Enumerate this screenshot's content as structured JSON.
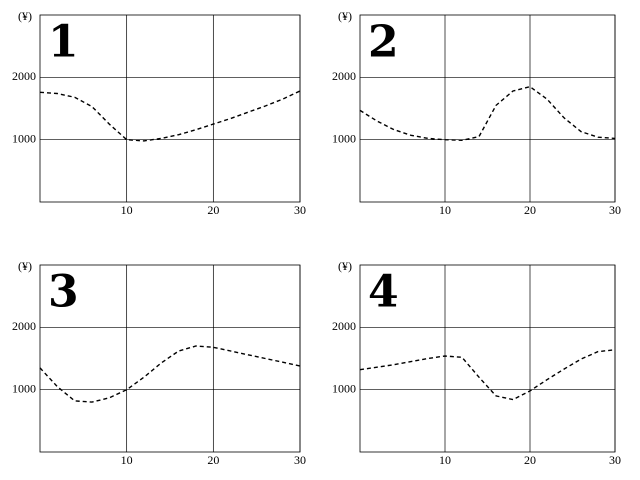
{
  "chart_data": [
    {
      "type": "line",
      "title": "1",
      "y_label": "(¥)",
      "x": [
        0,
        2,
        4,
        6,
        8,
        10,
        12,
        14,
        16,
        18,
        20,
        22,
        24,
        26,
        28,
        30
      ],
      "values": [
        1760,
        1740,
        1680,
        1530,
        1250,
        1000,
        980,
        1020,
        1080,
        1160,
        1250,
        1340,
        1440,
        1540,
        1650,
        1780
      ],
      "xlim": [
        0,
        30
      ],
      "ylim": [
        0,
        3000
      ],
      "xticks": [
        10,
        20,
        30
      ],
      "yticks": [
        1000,
        2000
      ],
      "grid": true,
      "color": "#000000",
      "line_style": "dashed"
    },
    {
      "type": "line",
      "title": "2",
      "y_label": "(¥)",
      "x": [
        0,
        2,
        4,
        6,
        8,
        10,
        12,
        14,
        16,
        18,
        20,
        22,
        24,
        26,
        28,
        30
      ],
      "values": [
        1470,
        1300,
        1160,
        1070,
        1020,
        1000,
        990,
        1050,
        1550,
        1780,
        1850,
        1650,
        1350,
        1130,
        1040,
        1020
      ],
      "xlim": [
        0,
        30
      ],
      "ylim": [
        0,
        3000
      ],
      "xticks": [
        10,
        20,
        30
      ],
      "yticks": [
        1000,
        2000
      ],
      "grid": true,
      "color": "#000000",
      "line_style": "dashed"
    },
    {
      "type": "line",
      "title": "3",
      "y_label": "(¥)",
      "x": [
        0,
        2,
        4,
        6,
        8,
        10,
        12,
        14,
        16,
        18,
        20,
        22,
        24,
        26,
        28,
        30
      ],
      "values": [
        1350,
        1050,
        820,
        800,
        870,
        1000,
        1200,
        1430,
        1620,
        1700,
        1680,
        1620,
        1560,
        1500,
        1440,
        1380
      ],
      "xlim": [
        0,
        30
      ],
      "ylim": [
        0,
        3000
      ],
      "xticks": [
        10,
        20,
        30
      ],
      "yticks": [
        1000,
        2000
      ],
      "grid": true,
      "color": "#000000",
      "line_style": "dashed"
    },
    {
      "type": "line",
      "title": "4",
      "y_label": "(¥)",
      "x": [
        0,
        2,
        4,
        6,
        8,
        10,
        12,
        14,
        16,
        18,
        20,
        22,
        24,
        26,
        28,
        30
      ],
      "values": [
        1320,
        1360,
        1400,
        1450,
        1500,
        1540,
        1520,
        1200,
        900,
        840,
        980,
        1160,
        1330,
        1490,
        1610,
        1640
      ],
      "xlim": [
        0,
        30
      ],
      "ylim": [
        0,
        3000
      ],
      "xticks": [
        10,
        20,
        30
      ],
      "yticks": [
        1000,
        2000
      ],
      "grid": true,
      "color": "#000000",
      "line_style": "dashed"
    }
  ]
}
